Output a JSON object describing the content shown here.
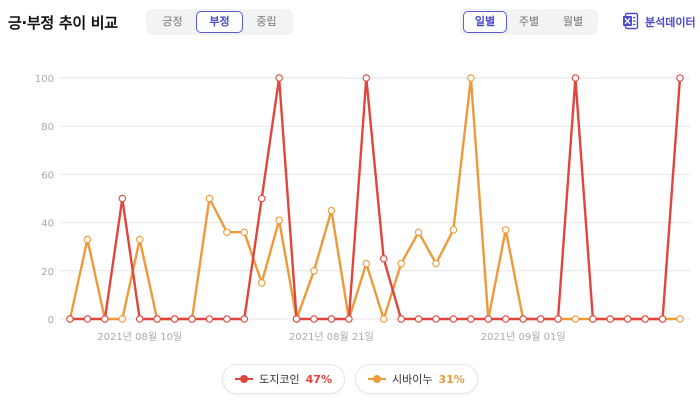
{
  "header": {
    "title": "긍·부정 추이 비교",
    "sentiment_tabs": [
      {
        "label": "긍정",
        "active": false
      },
      {
        "label": "부정",
        "active": true
      },
      {
        "label": "중립",
        "active": false
      }
    ],
    "period_tabs": [
      {
        "label": "일별",
        "active": true
      },
      {
        "label": "주별",
        "active": false
      },
      {
        "label": "월별",
        "active": false
      }
    ],
    "export_label": "분석데이터",
    "export_icon": "excel-icon"
  },
  "colors": {
    "accent": "#4b4bc9",
    "doge": "#e0463d",
    "shiba": "#ee9a3a",
    "grid": "#e6e6e6",
    "axis_text": "#aaaaaa"
  },
  "chart_data": {
    "type": "line",
    "title": "",
    "xlabel": "",
    "ylabel": "",
    "ylim": [
      0,
      100
    ],
    "yticks": [
      0,
      20,
      40,
      60,
      80,
      100
    ],
    "grid": true,
    "legend_placement": "bottom",
    "x": [
      "2021-08-06",
      "2021-08-07",
      "2021-08-08",
      "2021-08-09",
      "2021-08-10",
      "2021-08-11",
      "2021-08-12",
      "2021-08-13",
      "2021-08-14",
      "2021-08-15",
      "2021-08-16",
      "2021-08-17",
      "2021-08-18",
      "2021-08-19",
      "2021-08-20",
      "2021-08-21",
      "2021-08-22",
      "2021-08-23",
      "2021-08-24",
      "2021-08-25",
      "2021-08-26",
      "2021-08-27",
      "2021-08-28",
      "2021-08-29",
      "2021-08-30",
      "2021-08-31",
      "2021-09-01",
      "2021-09-02",
      "2021-09-03",
      "2021-09-04",
      "2021-09-05",
      "2021-09-06",
      "2021-09-07",
      "2021-09-08",
      "2021-09-09",
      "2021-09-10"
    ],
    "x_tick_labels": [
      "2021년 08월 10일",
      "2021년 08월 21일",
      "2021년 09월 01일"
    ],
    "x_tick_values": [
      "2021-08-10",
      "2021-08-21",
      "2021-09-01"
    ],
    "series": [
      {
        "name": "도지코인",
        "share": "47%",
        "values": [
          0,
          0,
          0,
          50,
          0,
          0,
          0,
          0,
          0,
          0,
          0,
          50,
          100,
          0,
          0,
          0,
          0,
          100,
          25,
          0,
          0,
          0,
          0,
          0,
          0,
          0,
          0,
          0,
          0,
          100,
          0,
          0,
          0,
          0,
          0,
          100
        ]
      },
      {
        "name": "시바이누",
        "share": "31%",
        "values": [
          0,
          33,
          0,
          0,
          33,
          0,
          0,
          0,
          50,
          36,
          36,
          15,
          41,
          0,
          20,
          45,
          0,
          23,
          0,
          23,
          36,
          23,
          37,
          100,
          0,
          37,
          0,
          0,
          0,
          0,
          0,
          0,
          0,
          0,
          0,
          0
        ]
      }
    ]
  }
}
